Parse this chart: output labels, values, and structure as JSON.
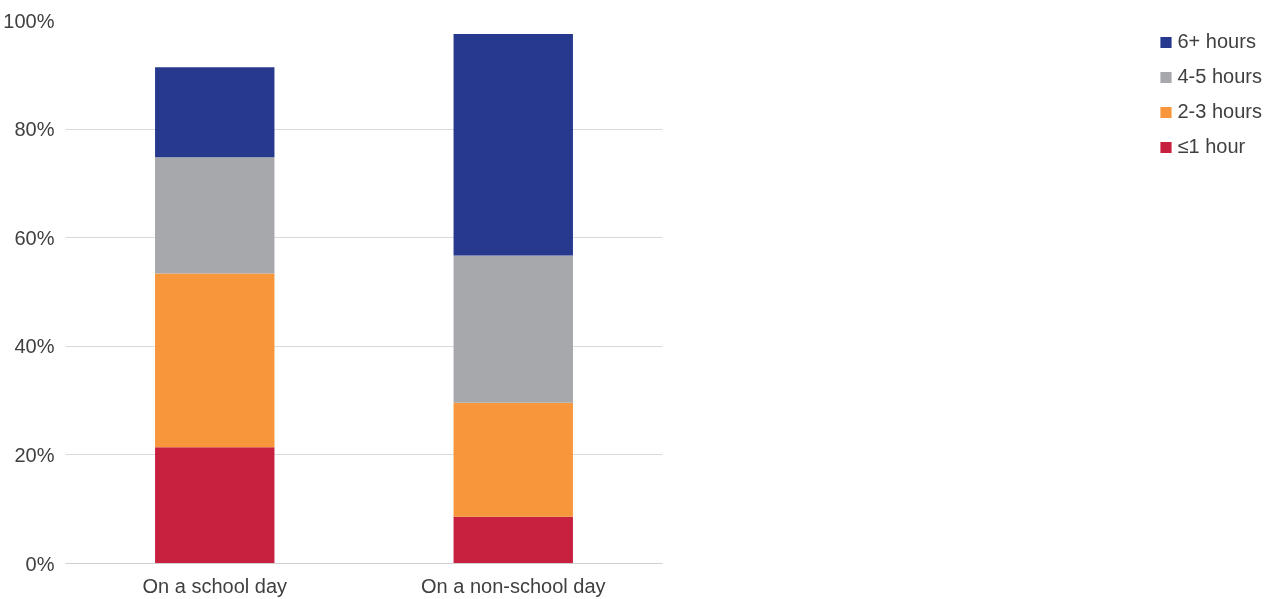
{
  "chart_data": {
    "type": "bar",
    "stacked": true,
    "categories": [
      "On a school day",
      "On a non-school day"
    ],
    "series": [
      {
        "name": "≤1 hour",
        "color": "#c8203f",
        "values": [
          21.4,
          8.6
        ]
      },
      {
        "name": "2-3 hours",
        "color": "#f7963a",
        "values": [
          32.0,
          21.0
        ]
      },
      {
        "name": "4-5 hours",
        "color": "#a7a8ab",
        "values": [
          21.4,
          27.1
        ]
      },
      {
        "name": "6+ hours",
        "color": "#27398f",
        "values": [
          16.6,
          40.8
        ]
      }
    ],
    "ylim": [
      0,
      100
    ],
    "yticks": [
      {
        "value": 0,
        "label": "0%"
      },
      {
        "value": 20,
        "label": "20%"
      },
      {
        "value": 40,
        "label": "40%"
      },
      {
        "value": 60,
        "label": "60%"
      },
      {
        "value": 80,
        "label": "80%"
      },
      {
        "value": 100,
        "label": "100%"
      }
    ],
    "grid": "y",
    "legend": "right"
  }
}
